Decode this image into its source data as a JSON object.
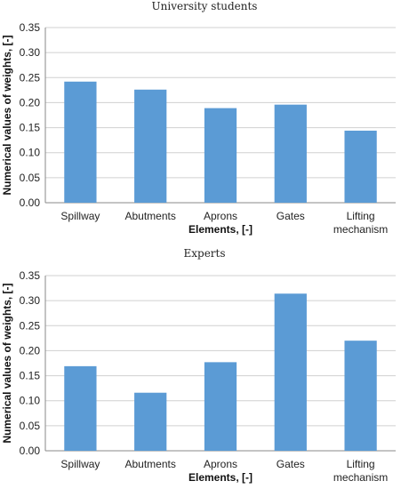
{
  "chart_data": [
    {
      "type": "bar",
      "title": "University students",
      "xlabel": "Elements, [-]",
      "ylabel": "Numerical values of weights, [-]",
      "categories": [
        "Spillway",
        "Abutments",
        "Aprons",
        "Gates",
        "Lifting mechanism"
      ],
      "values": [
        0.242,
        0.226,
        0.189,
        0.196,
        0.144
      ],
      "ylim": [
        0,
        0.35
      ],
      "yticks": [
        "0.00",
        "0.05",
        "0.10",
        "0.15",
        "0.20",
        "0.25",
        "0.30",
        "0.35"
      ],
      "grid": true,
      "bar_color": "#5B9BD5"
    },
    {
      "type": "bar",
      "title": "Experts",
      "xlabel": "Elements, [-]",
      "ylabel": "Numerical values of weights, [-]",
      "categories": [
        "Spillway",
        "Abutments",
        "Aprons",
        "Gates",
        "Lifting mechanism"
      ],
      "values": [
        0.169,
        0.116,
        0.177,
        0.314,
        0.22
      ],
      "ylim": [
        0,
        0.35
      ],
      "yticks": [
        "0.00",
        "0.05",
        "0.10",
        "0.15",
        "0.20",
        "0.25",
        "0.30",
        "0.35"
      ],
      "grid": true,
      "bar_color": "#5B9BD5"
    }
  ]
}
